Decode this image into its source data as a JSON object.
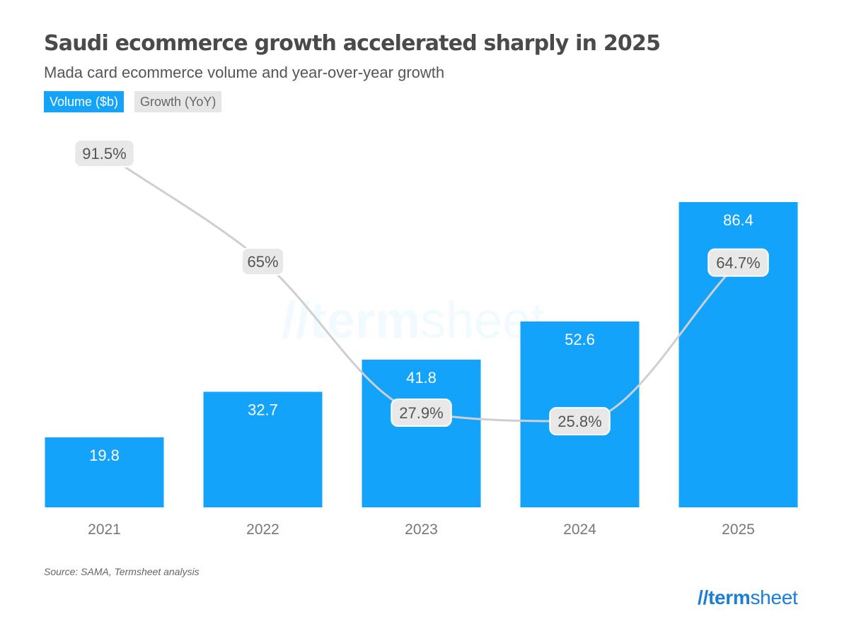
{
  "title": "Saudi ecommerce growth accelerated sharply in 2025",
  "subtitle": "Mada card ecommerce volume and year-over-year growth",
  "legend": [
    {
      "label": "Volume ($b)",
      "color": "#14a3fb"
    },
    {
      "label": "Growth (YoY)",
      "color": "#e6e6e6"
    }
  ],
  "source": "Source: SAMA, Termsheet analysis",
  "logo": {
    "slashes": "//",
    "bold": "term",
    "regular": "sheet"
  },
  "watermark": {
    "slashes": "//",
    "bold": "term",
    "regular": "sheet"
  },
  "colors": {
    "bar": "#14a3fb",
    "line": "#cfcfcf",
    "label_bg": "#e8e8e8",
    "label_text": "#555555",
    "tick": "#777777"
  },
  "chart_data": {
    "type": "bar",
    "categories": [
      "2021",
      "2022",
      "2023",
      "2024",
      "2025"
    ],
    "series": [
      {
        "name": "Volume ($b)",
        "type": "bar",
        "values": [
          19.8,
          32.7,
          41.8,
          52.6,
          86.4
        ],
        "labels": [
          "19.8",
          "32.7",
          "41.8",
          "52.6",
          "86.4"
        ]
      },
      {
        "name": "Growth (YoY)",
        "type": "line",
        "values": [
          91.5,
          65,
          27.9,
          25.8,
          64.7
        ],
        "labels": [
          "91.5%",
          "65%",
          "27.9%",
          "25.8%",
          "64.7%"
        ]
      }
    ],
    "ylim": [
      0,
      100
    ],
    "y2lim": [
      0,
      100
    ],
    "xlabel": "",
    "ylabel": "",
    "grid": false,
    "legend_position": "top-left"
  }
}
